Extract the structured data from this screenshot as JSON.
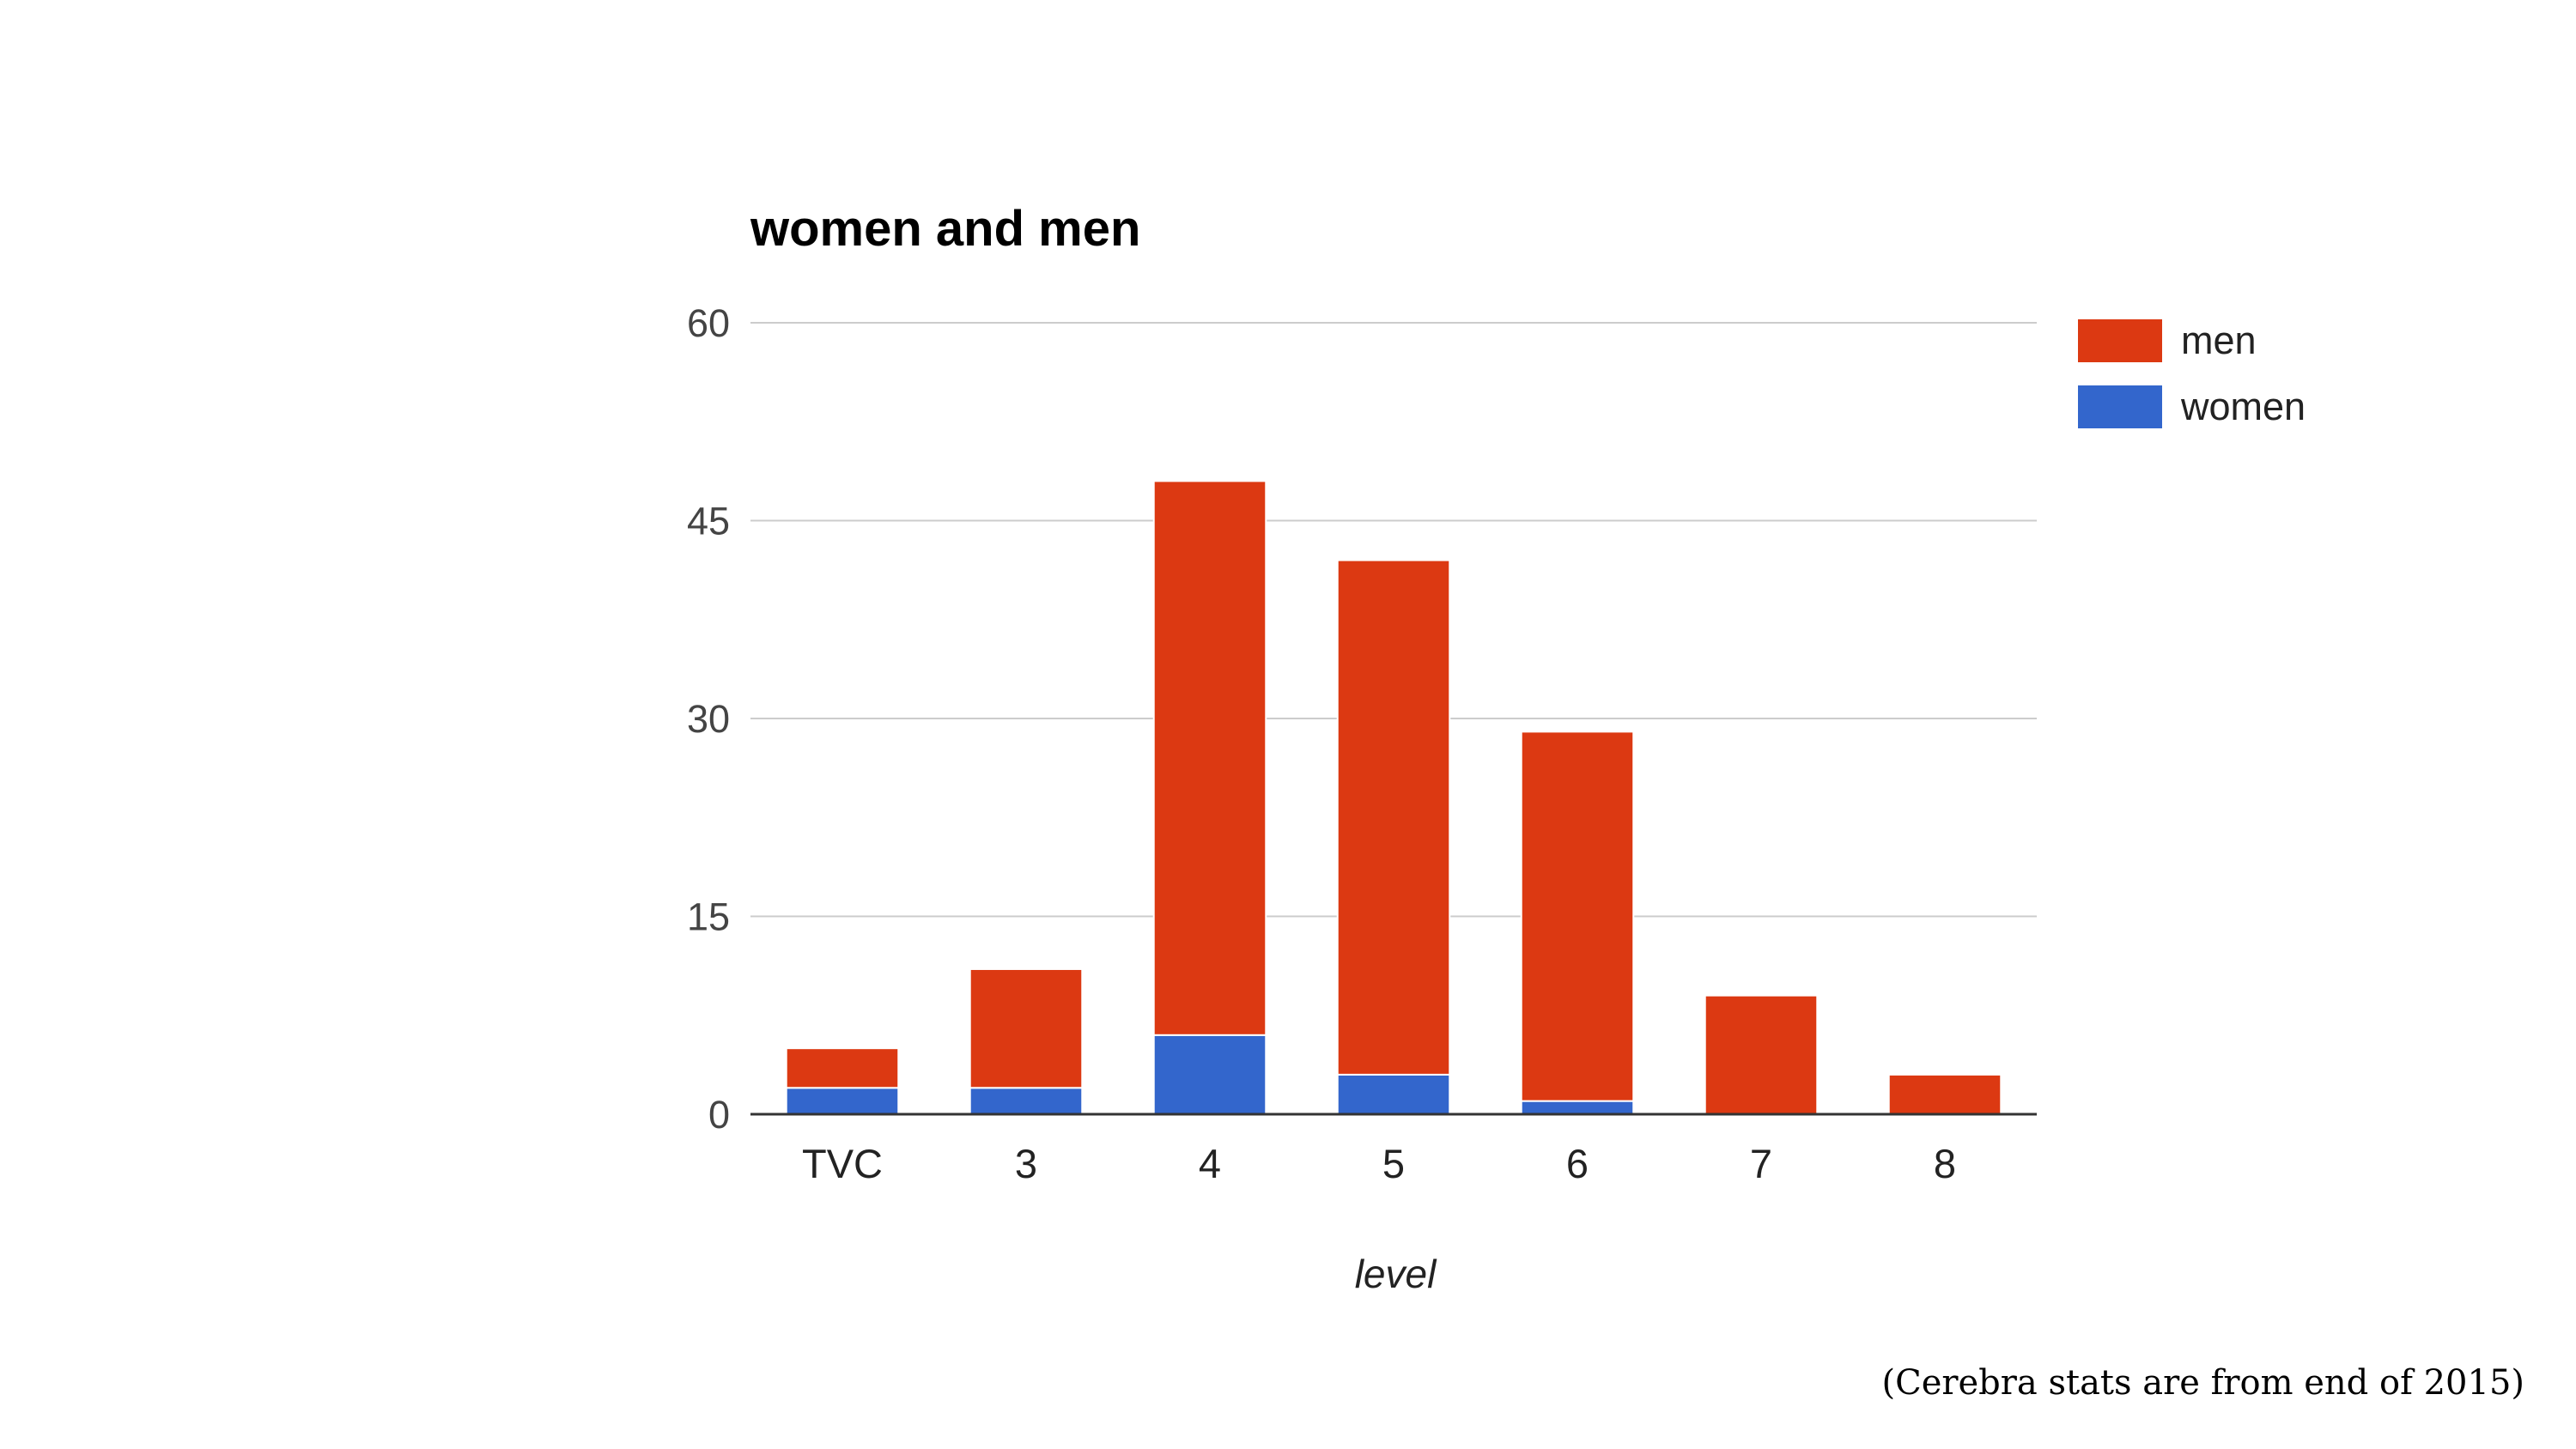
{
  "chart_data": {
    "type": "bar",
    "stacked": true,
    "title": "women and men",
    "xlabel": "level",
    "ylabel": "",
    "categories": [
      "TVC",
      "3",
      "4",
      "5",
      "6",
      "7",
      "8"
    ],
    "series": [
      {
        "name": "women",
        "color": "#3366cc",
        "values": [
          2,
          2,
          6,
          3,
          1,
          0,
          0
        ]
      },
      {
        "name": "men",
        "color": "#dc3912",
        "values": [
          3,
          9,
          42,
          39,
          28,
          9,
          3
        ]
      }
    ],
    "ylim": [
      0,
      60
    ],
    "yticks": [
      0,
      15,
      30,
      45,
      60
    ],
    "grid": true,
    "legend": {
      "placement": "top-right",
      "order": [
        "men",
        "women"
      ]
    }
  },
  "footnote": "(Cerebra stats are from end of 2015)"
}
